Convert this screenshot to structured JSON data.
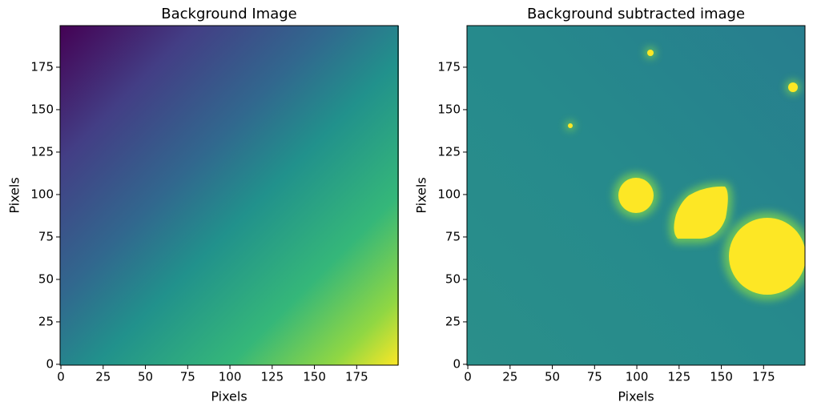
{
  "chart_data": [
    {
      "type": "image",
      "title": "Background Image",
      "xlabel": "Pixels",
      "ylabel": "Pixels",
      "xlim": [
        -0.5,
        199.5
      ],
      "ylim": [
        -0.5,
        199.5
      ],
      "xticks": [
        0,
        25,
        50,
        75,
        100,
        125,
        150,
        175
      ],
      "yticks": [
        0,
        25,
        50,
        75,
        100,
        125,
        150,
        175
      ]
    },
    {
      "type": "image",
      "title": "Background subtracted image",
      "xlabel": "Pixels",
      "ylabel": "Pixels",
      "xlim": [
        -0.5,
        199.5
      ],
      "ylim": [
        -0.5,
        199.5
      ],
      "xticks": [
        0,
        25,
        50,
        75,
        100,
        125,
        150,
        175
      ],
      "yticks": [
        0,
        25,
        50,
        75,
        100,
        125,
        150,
        175
      ]
    }
  ]
}
